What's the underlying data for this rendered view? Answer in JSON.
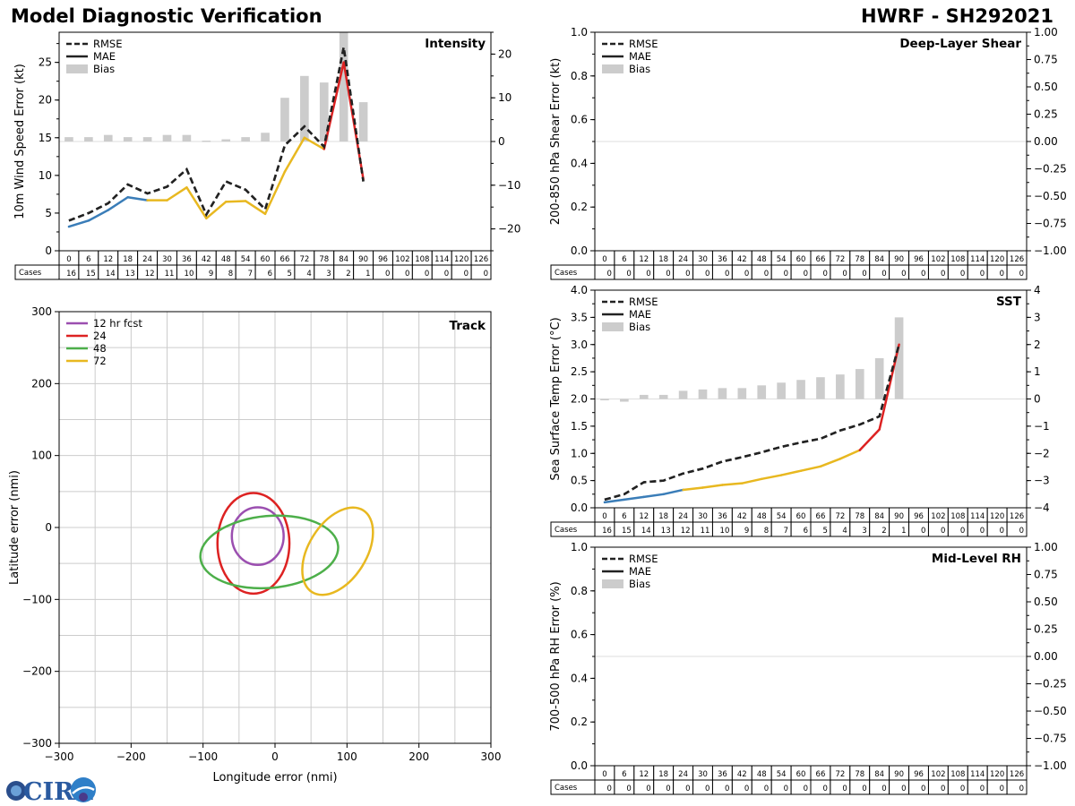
{
  "header": {
    "title": "Model Diagnostic Verification",
    "storm": "HWRF - SH292021"
  },
  "logo": {
    "text": "CIRA"
  },
  "colors": {
    "rmse": "#222222",
    "mae": "#222222",
    "bias": "#cccccc",
    "seg_blue": "#3a7db8",
    "seg_yellow": "#e8b820",
    "seg_red": "#dd2222",
    "track_12": "#9b4fb0",
    "track_24": "#dd2222",
    "track_48": "#4daf4a",
    "track_72": "#e8b820",
    "grid": "#cccccc"
  },
  "legend_labels": {
    "rmse": "RMSE",
    "mae": "MAE",
    "bias": "Bias"
  },
  "cases_label": "Cases",
  "leads": [
    0,
    6,
    12,
    18,
    24,
    30,
    36,
    42,
    48,
    54,
    60,
    66,
    72,
    78,
    84,
    90,
    96,
    102,
    108,
    114,
    120,
    126
  ],
  "chart_data": [
    {
      "id": "intensity",
      "type": "line",
      "title": "Intensity",
      "ylabel": "10m Wind Speed Error (kt)",
      "ylim": [
        0,
        29
      ],
      "yticks": [
        0,
        5,
        10,
        15,
        20,
        25
      ],
      "y2lim": [
        -25,
        25
      ],
      "y2ticks": [
        -20,
        -10,
        0,
        10,
        20
      ],
      "x": [
        0,
        6,
        12,
        18,
        24,
        30,
        36,
        42,
        48,
        54,
        60,
        66,
        72,
        78,
        84,
        90
      ],
      "rmse": [
        4.0,
        5.0,
        6.3,
        8.8,
        7.6,
        8.5,
        10.8,
        4.8,
        9.2,
        8.1,
        5.5,
        14.0,
        16.5,
        13.8,
        27.0,
        9.2
      ],
      "mae": [
        3.2,
        4.0,
        5.4,
        7.1,
        6.7,
        6.7,
        8.4,
        4.3,
        6.5,
        6.6,
        4.9,
        10.5,
        15.0,
        13.5,
        25.0,
        9.5
      ],
      "bias": [
        1.0,
        1.0,
        1.5,
        1.0,
        1.0,
        1.5,
        1.5,
        0.2,
        0.5,
        1.0,
        2.0,
        10.0,
        15.0,
        13.5,
        25.0,
        9.0
      ],
      "cases": [
        16,
        15,
        14,
        13,
        12,
        11,
        10,
        9,
        8,
        7,
        6,
        5,
        4,
        3,
        2,
        1,
        0,
        0,
        0,
        0,
        0,
        0
      ]
    },
    {
      "id": "shear",
      "type": "line",
      "title": "Deep-Layer Shear",
      "ylabel": "200-850 hPa Shear Error (kt)",
      "ylim": [
        0,
        1
      ],
      "yticks": [
        0.0,
        0.2,
        0.4,
        0.6,
        0.8,
        1.0
      ],
      "y2lim": [
        -1,
        1
      ],
      "y2ticks": [
        -1.0,
        -0.75,
        -0.5,
        -0.25,
        0.0,
        0.25,
        0.5,
        0.75,
        1.0
      ],
      "x": [],
      "rmse": [],
      "mae": [],
      "bias": [],
      "cases": [
        0,
        0,
        0,
        0,
        0,
        0,
        0,
        0,
        0,
        0,
        0,
        0,
        0,
        0,
        0,
        0,
        0,
        0,
        0,
        0,
        0,
        0
      ]
    },
    {
      "id": "sst",
      "type": "line",
      "title": "SST",
      "ylabel": "Sea Surface Temp Error (°C)",
      "ylim": [
        0,
        4
      ],
      "yticks": [
        0.0,
        0.5,
        1.0,
        1.5,
        2.0,
        2.5,
        3.0,
        3.5,
        4.0
      ],
      "y2lim": [
        -4,
        4
      ],
      "y2ticks": [
        -4,
        -3,
        -2,
        -1,
        0,
        1,
        2,
        3,
        4
      ],
      "x": [
        0,
        6,
        12,
        18,
        24,
        30,
        36,
        42,
        48,
        54,
        60,
        66,
        72,
        78,
        84,
        90
      ],
      "rmse": [
        0.15,
        0.25,
        0.47,
        0.5,
        0.63,
        0.72,
        0.85,
        0.93,
        1.02,
        1.12,
        1.2,
        1.27,
        1.42,
        1.53,
        1.68,
        3.0
      ],
      "mae": [
        0.1,
        0.15,
        0.2,
        0.25,
        0.33,
        0.37,
        0.42,
        0.45,
        0.53,
        0.6,
        0.68,
        0.76,
        0.9,
        1.06,
        1.44,
        3.0
      ],
      "bias": [
        -0.05,
        -0.1,
        0.15,
        0.15,
        0.3,
        0.35,
        0.4,
        0.4,
        0.5,
        0.6,
        0.7,
        0.8,
        0.9,
        1.1,
        1.5,
        3.0
      ],
      "cases": [
        16,
        15,
        14,
        13,
        12,
        11,
        10,
        9,
        8,
        7,
        6,
        5,
        4,
        3,
        2,
        1,
        0,
        0,
        0,
        0,
        0,
        0
      ]
    },
    {
      "id": "rh",
      "type": "line",
      "title": "Mid-Level RH",
      "ylabel": "700-500 hPa RH Error (%)",
      "ylim": [
        0,
        1
      ],
      "yticks": [
        0.0,
        0.2,
        0.4,
        0.6,
        0.8,
        1.0
      ],
      "y2lim": [
        -1,
        1
      ],
      "y2ticks": [
        -1.0,
        -0.75,
        -0.5,
        -0.25,
        0.0,
        0.25,
        0.5,
        0.75,
        1.0
      ],
      "x": [],
      "rmse": [],
      "mae": [],
      "bias": [],
      "cases": [
        0,
        0,
        0,
        0,
        0,
        0,
        0,
        0,
        0,
        0,
        0,
        0,
        0,
        0,
        0,
        0,
        0,
        0,
        0,
        0,
        0,
        0
      ]
    },
    {
      "id": "track",
      "type": "scatter",
      "title": "Track",
      "xlabel": "Longitude error (nmi)",
      "ylabel": "Latitude error (nmi)",
      "xlim": [
        -300,
        300
      ],
      "ylim": [
        -300,
        300
      ],
      "xticks": [
        -300,
        -200,
        -100,
        0,
        100,
        200,
        300
      ],
      "yticks": [
        -300,
        -200,
        -100,
        0,
        100,
        200,
        300
      ],
      "series": [
        {
          "name": "12 hr fcst",
          "color_key": "track_12",
          "cx": -24,
          "cy": -12,
          "rx": 36,
          "ry": 40,
          "rot": 0
        },
        {
          "name": "24",
          "color_key": "track_24",
          "cx": -30,
          "cy": -22,
          "rx": 50,
          "ry": 70,
          "rot": 0
        },
        {
          "name": "48",
          "color_key": "track_48",
          "cx": -8,
          "cy": -34,
          "rx": 96,
          "ry": 50,
          "rot": -5
        },
        {
          "name": "72",
          "color_key": "track_72",
          "cx": 87,
          "cy": -33,
          "rx": 40,
          "ry": 67,
          "rot": 32
        }
      ]
    }
  ]
}
